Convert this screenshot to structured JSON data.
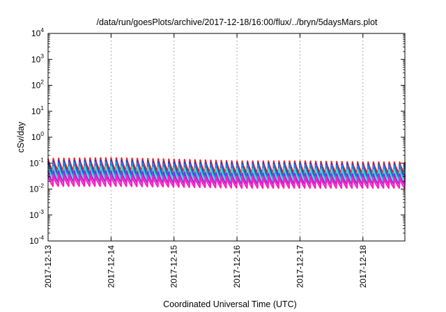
{
  "chart_data": {
    "type": "line",
    "title": "/data/run/goesPlots/archive/2017-12-18/16:00/flux/../bryn/5daysMars.plot",
    "xlabel": "Coordinated Universal Time (UTC)",
    "ylabel": "cSv/day",
    "y_scale": "log",
    "ylim": [
      0.0001,
      10000
    ],
    "y_ticks": [
      {
        "base": "10",
        "exp": "-4",
        "value": 0.0001
      },
      {
        "base": "10",
        "exp": "-3",
        "value": 0.001
      },
      {
        "base": "10",
        "exp": "-2",
        "value": 0.01
      },
      {
        "base": "10",
        "exp": "-1",
        "value": 0.1
      },
      {
        "base": "10",
        "exp": "0",
        "value": 1
      },
      {
        "base": "10",
        "exp": "1",
        "value": 10
      },
      {
        "base": "10",
        "exp": "2",
        "value": 100
      },
      {
        "base": "10",
        "exp": "3",
        "value": 1000
      },
      {
        "base": "10",
        "exp": "4",
        "value": 10000
      }
    ],
    "x_ticks": [
      "2017-12-13",
      "2017-12-14",
      "2017-12-15",
      "2017-12-16",
      "2017-12-17",
      "2017-12-18"
    ],
    "xlim": [
      "2017-12-13T00:00",
      "2017-12-18T16:00"
    ],
    "grid": true,
    "legend": "none",
    "cycles_per_day": 12,
    "series": [
      {
        "color": "#e8242b",
        "peak_values": [
          0.15,
          0.16,
          0.14,
          0.12,
          0.12,
          0.11
        ],
        "trough_values": [
          0.05,
          0.05,
          0.045,
          0.04,
          0.04,
          0.04
        ]
      },
      {
        "color": "#1f3fbf",
        "peak_values": [
          0.12,
          0.13,
          0.11,
          0.1,
          0.1,
          0.09
        ],
        "trough_values": [
          0.035,
          0.035,
          0.03,
          0.028,
          0.028,
          0.028
        ]
      },
      {
        "color": "#2e7fe0",
        "peak_values": [
          0.1,
          0.11,
          0.09,
          0.085,
          0.085,
          0.08
        ],
        "trough_values": [
          0.028,
          0.028,
          0.025,
          0.023,
          0.023,
          0.023
        ]
      },
      {
        "color": "#40e0c8",
        "peak_values": [
          0.07,
          0.075,
          0.065,
          0.06,
          0.06,
          0.055
        ],
        "trough_values": [
          0.025,
          0.025,
          0.022,
          0.02,
          0.02,
          0.02
        ]
      },
      {
        "color": "#8a2be2",
        "peak_values": [
          0.05,
          0.05,
          0.045,
          0.04,
          0.04,
          0.038
        ],
        "trough_values": [
          0.018,
          0.018,
          0.016,
          0.015,
          0.015,
          0.015
        ]
      },
      {
        "color": "#ff1fbf",
        "peak_values": [
          0.035,
          0.035,
          0.03,
          0.03,
          0.03,
          0.028
        ],
        "trough_values": [
          0.013,
          0.013,
          0.012,
          0.011,
          0.011,
          0.011
        ]
      }
    ]
  }
}
